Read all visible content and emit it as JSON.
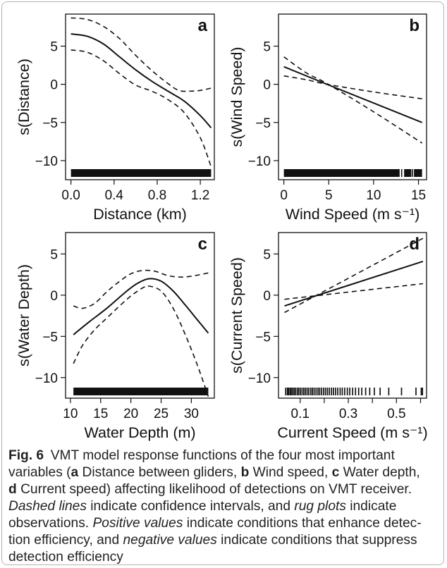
{
  "chart_data": [
    {
      "type": "line",
      "panel_letter": "a",
      "xlabel": "Distance (km)",
      "ylabel": "s(Distance)",
      "xlim": [
        -0.05,
        1.33
      ],
      "ylim": [
        -12.5,
        9.2
      ],
      "xticks": [
        0.0,
        0.4,
        0.8,
        1.2
      ],
      "xtick_labels": [
        "0.0",
        "0.4",
        "0.8",
        "1.2"
      ],
      "yticks": [
        -10,
        -5,
        0,
        5
      ],
      "ytick_labels": [
        "−10",
        "−5",
        "0",
        "5"
      ],
      "series": [
        {
          "style": "solid",
          "x": [
            0.0,
            0.15,
            0.3,
            0.45,
            0.6,
            0.75,
            0.9,
            1.05,
            1.2,
            1.3
          ],
          "y": [
            6.6,
            6.3,
            5.3,
            3.6,
            1.9,
            0.4,
            -0.9,
            -2.2,
            -4.1,
            -5.7
          ]
        },
        {
          "style": "dashed",
          "x": [
            0.0,
            0.15,
            0.3,
            0.45,
            0.6,
            0.75,
            0.9,
            1.0,
            1.1,
            1.2,
            1.3
          ],
          "y": [
            8.7,
            8.5,
            7.6,
            6.0,
            3.8,
            1.8,
            0.1,
            -0.8,
            -0.9,
            -0.8,
            -0.5
          ]
        },
        {
          "style": "dashed",
          "x": [
            0.0,
            0.15,
            0.3,
            0.45,
            0.6,
            0.75,
            0.9,
            1.05,
            1.2,
            1.3
          ],
          "y": [
            4.5,
            4.2,
            3.1,
            1.4,
            -0.1,
            -0.9,
            -2.0,
            -3.7,
            -7.0,
            -10.8
          ]
        }
      ],
      "rug": {
        "x0": 0.0,
        "x1": 1.3,
        "gaps": []
      }
    },
    {
      "type": "line",
      "panel_letter": "b",
      "xlabel": "Wind Speed (m s⁻¹)",
      "ylabel": "s(Wind Speed)",
      "xlim": [
        -0.6,
        15.9
      ],
      "ylim": [
        -12.5,
        9.2
      ],
      "xticks": [
        0,
        5,
        10,
        15
      ],
      "xtick_labels": [
        "0",
        "5",
        "10",
        "15"
      ],
      "yticks": [
        -10,
        -5,
        0,
        5
      ],
      "ytick_labels": [
        "−10",
        "−5",
        "0",
        "5"
      ],
      "series": [
        {
          "style": "solid",
          "x": [
            0,
            4.8,
            15.4
          ],
          "y": [
            2.3,
            0.0,
            -5.0
          ]
        },
        {
          "style": "dashed",
          "x": [
            0,
            2.5,
            4.8,
            10,
            15.4
          ],
          "y": [
            3.6,
            1.5,
            0.1,
            -3.6,
            -7.7
          ]
        },
        {
          "style": "dashed",
          "x": [
            0,
            2.5,
            4.8,
            10,
            15.4
          ],
          "y": [
            1.1,
            0.6,
            0.0,
            -1.0,
            -1.9
          ]
        }
      ],
      "rug": {
        "x0": 0.0,
        "x1": 15.4,
        "gaps": [
          [
            12.9,
            13.4
          ],
          [
            14.2,
            14.5
          ]
        ]
      }
    },
    {
      "type": "line",
      "panel_letter": "c",
      "xlabel": "Water Depth (m)",
      "ylabel": "s(Water Depth)",
      "xlim": [
        9.2,
        33.8
      ],
      "ylim": [
        -12.5,
        7.6
      ],
      "xticks": [
        10,
        15,
        20,
        25,
        30
      ],
      "xtick_labels": [
        "10",
        "15",
        "20",
        "25",
        "30"
      ],
      "yticks": [
        -10,
        -5,
        0,
        5
      ],
      "ytick_labels": [
        "−10",
        "−5",
        "0",
        "5"
      ],
      "series": [
        {
          "style": "solid",
          "x": [
            10.5,
            13,
            16,
            19,
            21,
            23,
            25,
            27,
            29,
            31,
            32.8
          ],
          "y": [
            -4.8,
            -3.3,
            -1.6,
            0.3,
            1.4,
            2.0,
            1.7,
            0.5,
            -1.2,
            -3.0,
            -4.6
          ]
        },
        {
          "style": "dashed",
          "x": [
            10.5,
            12,
            14,
            16,
            18,
            20,
            22,
            24,
            26,
            28,
            30,
            32.8
          ],
          "y": [
            -1.3,
            -1.6,
            -1.0,
            0.4,
            1.6,
            2.6,
            3.0,
            2.9,
            2.4,
            2.2,
            2.3,
            2.7
          ]
        },
        {
          "style": "dashed",
          "x": [
            10.5,
            12,
            14,
            16,
            18,
            20,
            22,
            23,
            25,
            27,
            29,
            31,
            32.8
          ],
          "y": [
            -8.3,
            -6.1,
            -4.2,
            -2.8,
            -1.4,
            -0.1,
            0.9,
            1.1,
            0.5,
            -1.6,
            -4.8,
            -8.5,
            -12.3
          ]
        }
      ],
      "rug": {
        "x0": 10.5,
        "x1": 32.8,
        "gaps": []
      }
    },
    {
      "type": "line",
      "panel_letter": "d",
      "xlabel": "Current Speed (m s⁻¹)",
      "ylabel": "s(Current Speed)",
      "xlim": [
        0.01,
        0.625
      ],
      "ylim": [
        -12.5,
        7.6
      ],
      "xticks": [
        0.1,
        0.3,
        0.5
      ],
      "xtick_labels": [
        "0.1",
        "0.3",
        "0.5"
      ],
      "extra_ticks": [
        0.2,
        0.4,
        0.6
      ],
      "yticks": [
        -10,
        -5,
        0,
        5
      ],
      "ytick_labels": [
        "−10",
        "−5",
        "0",
        "5"
      ],
      "series": [
        {
          "style": "solid",
          "x": [
            0.035,
            0.61
          ],
          "y": [
            -1.3,
            4.1
          ]
        },
        {
          "style": "dashed",
          "x": [
            0.035,
            0.61
          ],
          "y": [
            -2.1,
            6.9
          ]
        },
        {
          "style": "dashed",
          "x": [
            0.035,
            0.61
          ],
          "y": [
            -0.5,
            1.4
          ]
        }
      ],
      "rug_x": [
        0.04,
        0.047,
        0.052,
        0.058,
        0.063,
        0.069,
        0.075,
        0.081,
        0.088,
        0.094,
        0.101,
        0.108,
        0.115,
        0.122,
        0.129,
        0.136,
        0.144,
        0.151,
        0.158,
        0.166,
        0.174,
        0.181,
        0.189,
        0.197,
        0.205,
        0.213,
        0.221,
        0.23,
        0.238,
        0.247,
        0.256,
        0.266,
        0.275,
        0.285,
        0.296,
        0.306,
        0.318,
        0.33,
        0.343,
        0.356,
        0.372,
        0.389,
        0.408,
        0.432,
        0.468,
        0.521,
        0.581,
        0.603,
        0.608
      ]
    }
  ],
  "caption": {
    "fig_label": "Fig. 6",
    "lines": [
      [
        {
          "t": "VMT model response functions of the four most important",
          "s": "n"
        }
      ],
      [
        {
          "t": "variables (",
          "s": "n"
        },
        {
          "t": "a",
          "s": "b"
        },
        {
          "t": " Distance between gliders, ",
          "s": "n"
        },
        {
          "t": "b",
          "s": "b"
        },
        {
          "t": " Wind speed, ",
          "s": "n"
        },
        {
          "t": "c",
          "s": "b"
        },
        {
          "t": " Water depth,",
          "s": "n"
        }
      ],
      [
        {
          "t": "d",
          "s": "b"
        },
        {
          "t": " Current speed) affecting likelihood of detections on VMT receiver.",
          "s": "n"
        }
      ],
      [
        {
          "t": "Dashed lines",
          "s": "i"
        },
        {
          "t": " indicate confidence intervals, and ",
          "s": "n"
        },
        {
          "t": "rug plots",
          "s": "i"
        },
        {
          "t": " indicate",
          "s": "n"
        }
      ],
      [
        {
          "t": "observations. ",
          "s": "n"
        },
        {
          "t": "Positive values",
          "s": "i"
        },
        {
          "t": " indicate conditions that enhance detec-",
          "s": "n"
        }
      ],
      [
        {
          "t": "tion efficiency, and ",
          "s": "n"
        },
        {
          "t": "negative values",
          "s": "i"
        },
        {
          "t": " indicate conditions that suppress",
          "s": "n"
        }
      ],
      [
        {
          "t": "detection efficiency",
          "s": "n"
        }
      ]
    ]
  }
}
